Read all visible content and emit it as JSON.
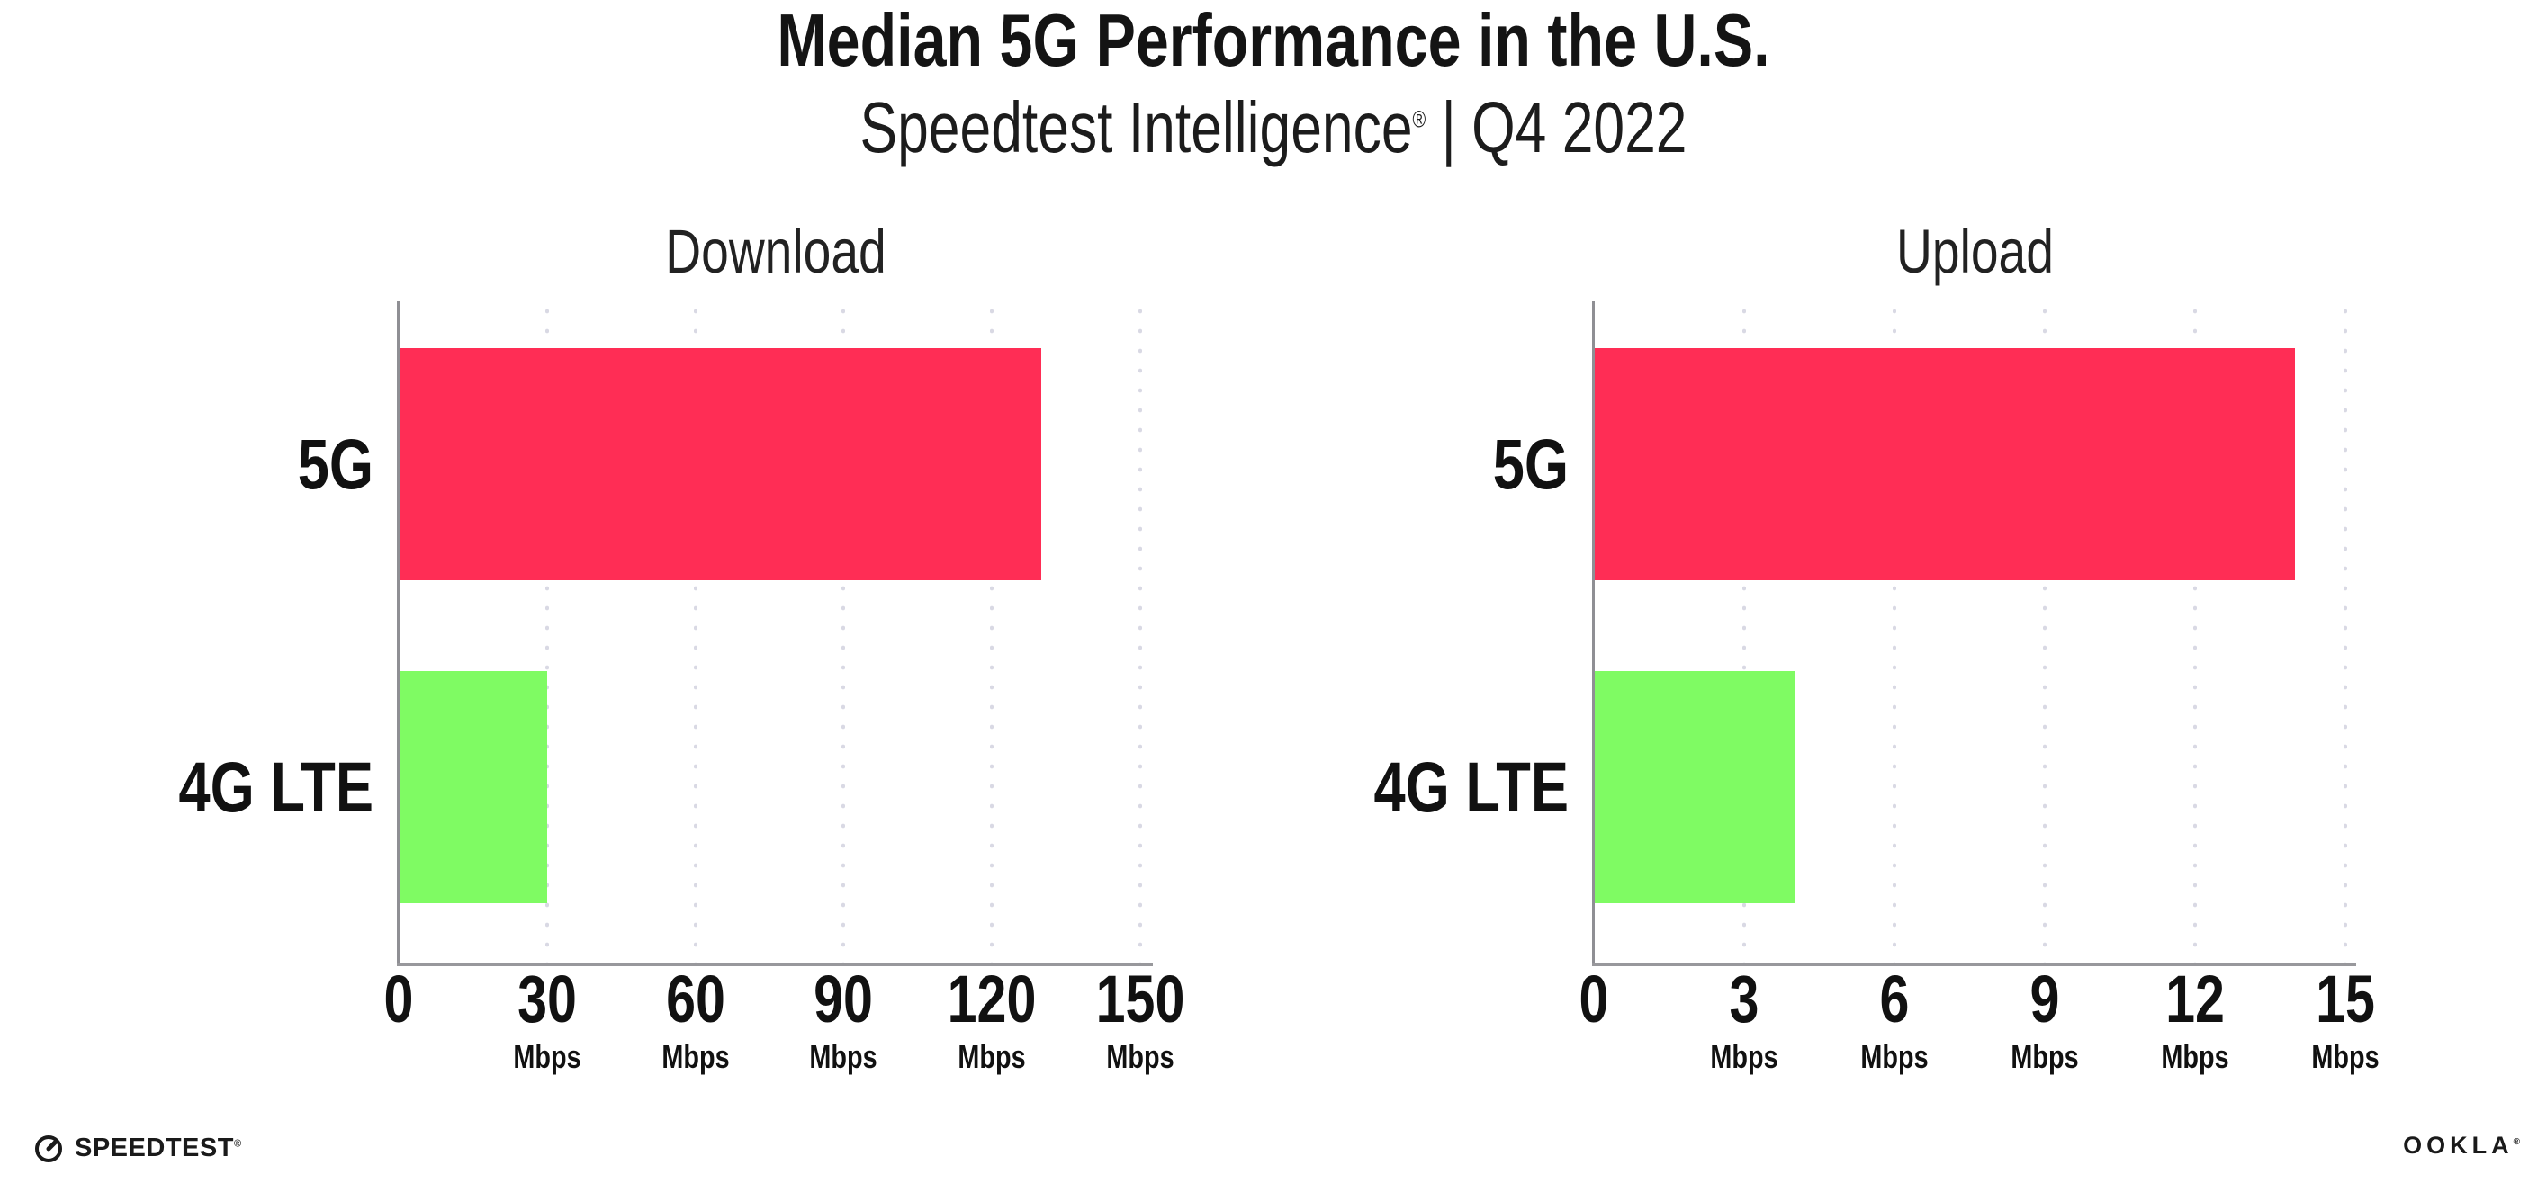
{
  "header": {
    "title": "Median 5G Performance in the U.S.",
    "subtitle_brand": "Speedtest Intelligence",
    "subtitle_mark": "®",
    "subtitle_rest": " | Q4 2022"
  },
  "chart_data": [
    {
      "type": "bar",
      "orientation": "horizontal",
      "title": "Download",
      "categories": [
        "5G",
        "4G LTE"
      ],
      "values": [
        130,
        30
      ],
      "unit": "Mbps",
      "xlim": [
        0,
        152
      ],
      "xticks": [
        0,
        30,
        60,
        90,
        120,
        150
      ],
      "bar_colors": [
        "#ff2d55",
        "#7ffb63"
      ],
      "grid": "vertical-dotted",
      "legend": "none"
    },
    {
      "type": "bar",
      "orientation": "horizontal",
      "title": "Upload",
      "categories": [
        "5G",
        "4G LTE"
      ],
      "values": [
        14,
        4
      ],
      "unit": "Mbps",
      "xlim": [
        0,
        15.2
      ],
      "xticks": [
        0,
        3,
        6,
        9,
        12,
        15
      ],
      "bar_colors": [
        "#ff2d55",
        "#7ffb63"
      ],
      "grid": "vertical-dotted",
      "legend": "none"
    }
  ],
  "footer": {
    "speedtest_label": "SPEEDTEST",
    "speedtest_mark": "®",
    "ookla_label": "OOKLA",
    "ookla_mark": "®"
  },
  "colors": {
    "bar_5g": "#ff2d55",
    "bar_4g_lte": "#7ffb63",
    "gridline": "#d9d9e4",
    "axis": "#939398",
    "text": "#141414",
    "background": "#ffffff"
  }
}
